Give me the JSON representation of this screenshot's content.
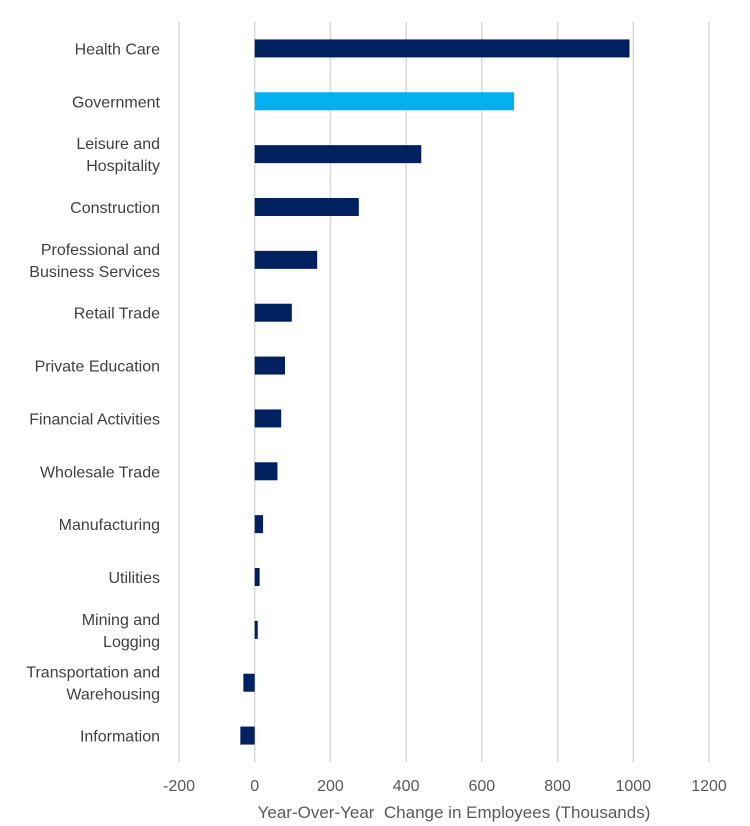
{
  "chart_data": {
    "type": "bar",
    "orientation": "horizontal",
    "categories": [
      [
        "Health Care"
      ],
      [
        "Government"
      ],
      [
        "Leisure and",
        "Hospitality"
      ],
      [
        "Construction"
      ],
      [
        "Professional and",
        "Business Services"
      ],
      [
        "Retail Trade"
      ],
      [
        "Private Education"
      ],
      [
        "Financial Activities"
      ],
      [
        "Wholesale Trade"
      ],
      [
        "Manufacturing"
      ],
      [
        "Utilities"
      ],
      [
        "Mining and",
        "Logging"
      ],
      [
        "Transportation and",
        "Warehousing"
      ],
      [
        "Information"
      ]
    ],
    "values": [
      990,
      685,
      440,
      275,
      165,
      98,
      80,
      70,
      60,
      22,
      13,
      8,
      -30,
      -38
    ],
    "colors": [
      "#002060",
      "#00b0f0",
      "#002060",
      "#002060",
      "#002060",
      "#002060",
      "#002060",
      "#002060",
      "#002060",
      "#002060",
      "#002060",
      "#002060",
      "#002060",
      "#002060"
    ],
    "xlabel": "Year-Over-Year  Change in Employees (Thousands)",
    "xlim": [
      -200,
      1200
    ],
    "xticks": [
      -200,
      0,
      200,
      400,
      600,
      800,
      1000,
      1200
    ],
    "grid": true
  }
}
